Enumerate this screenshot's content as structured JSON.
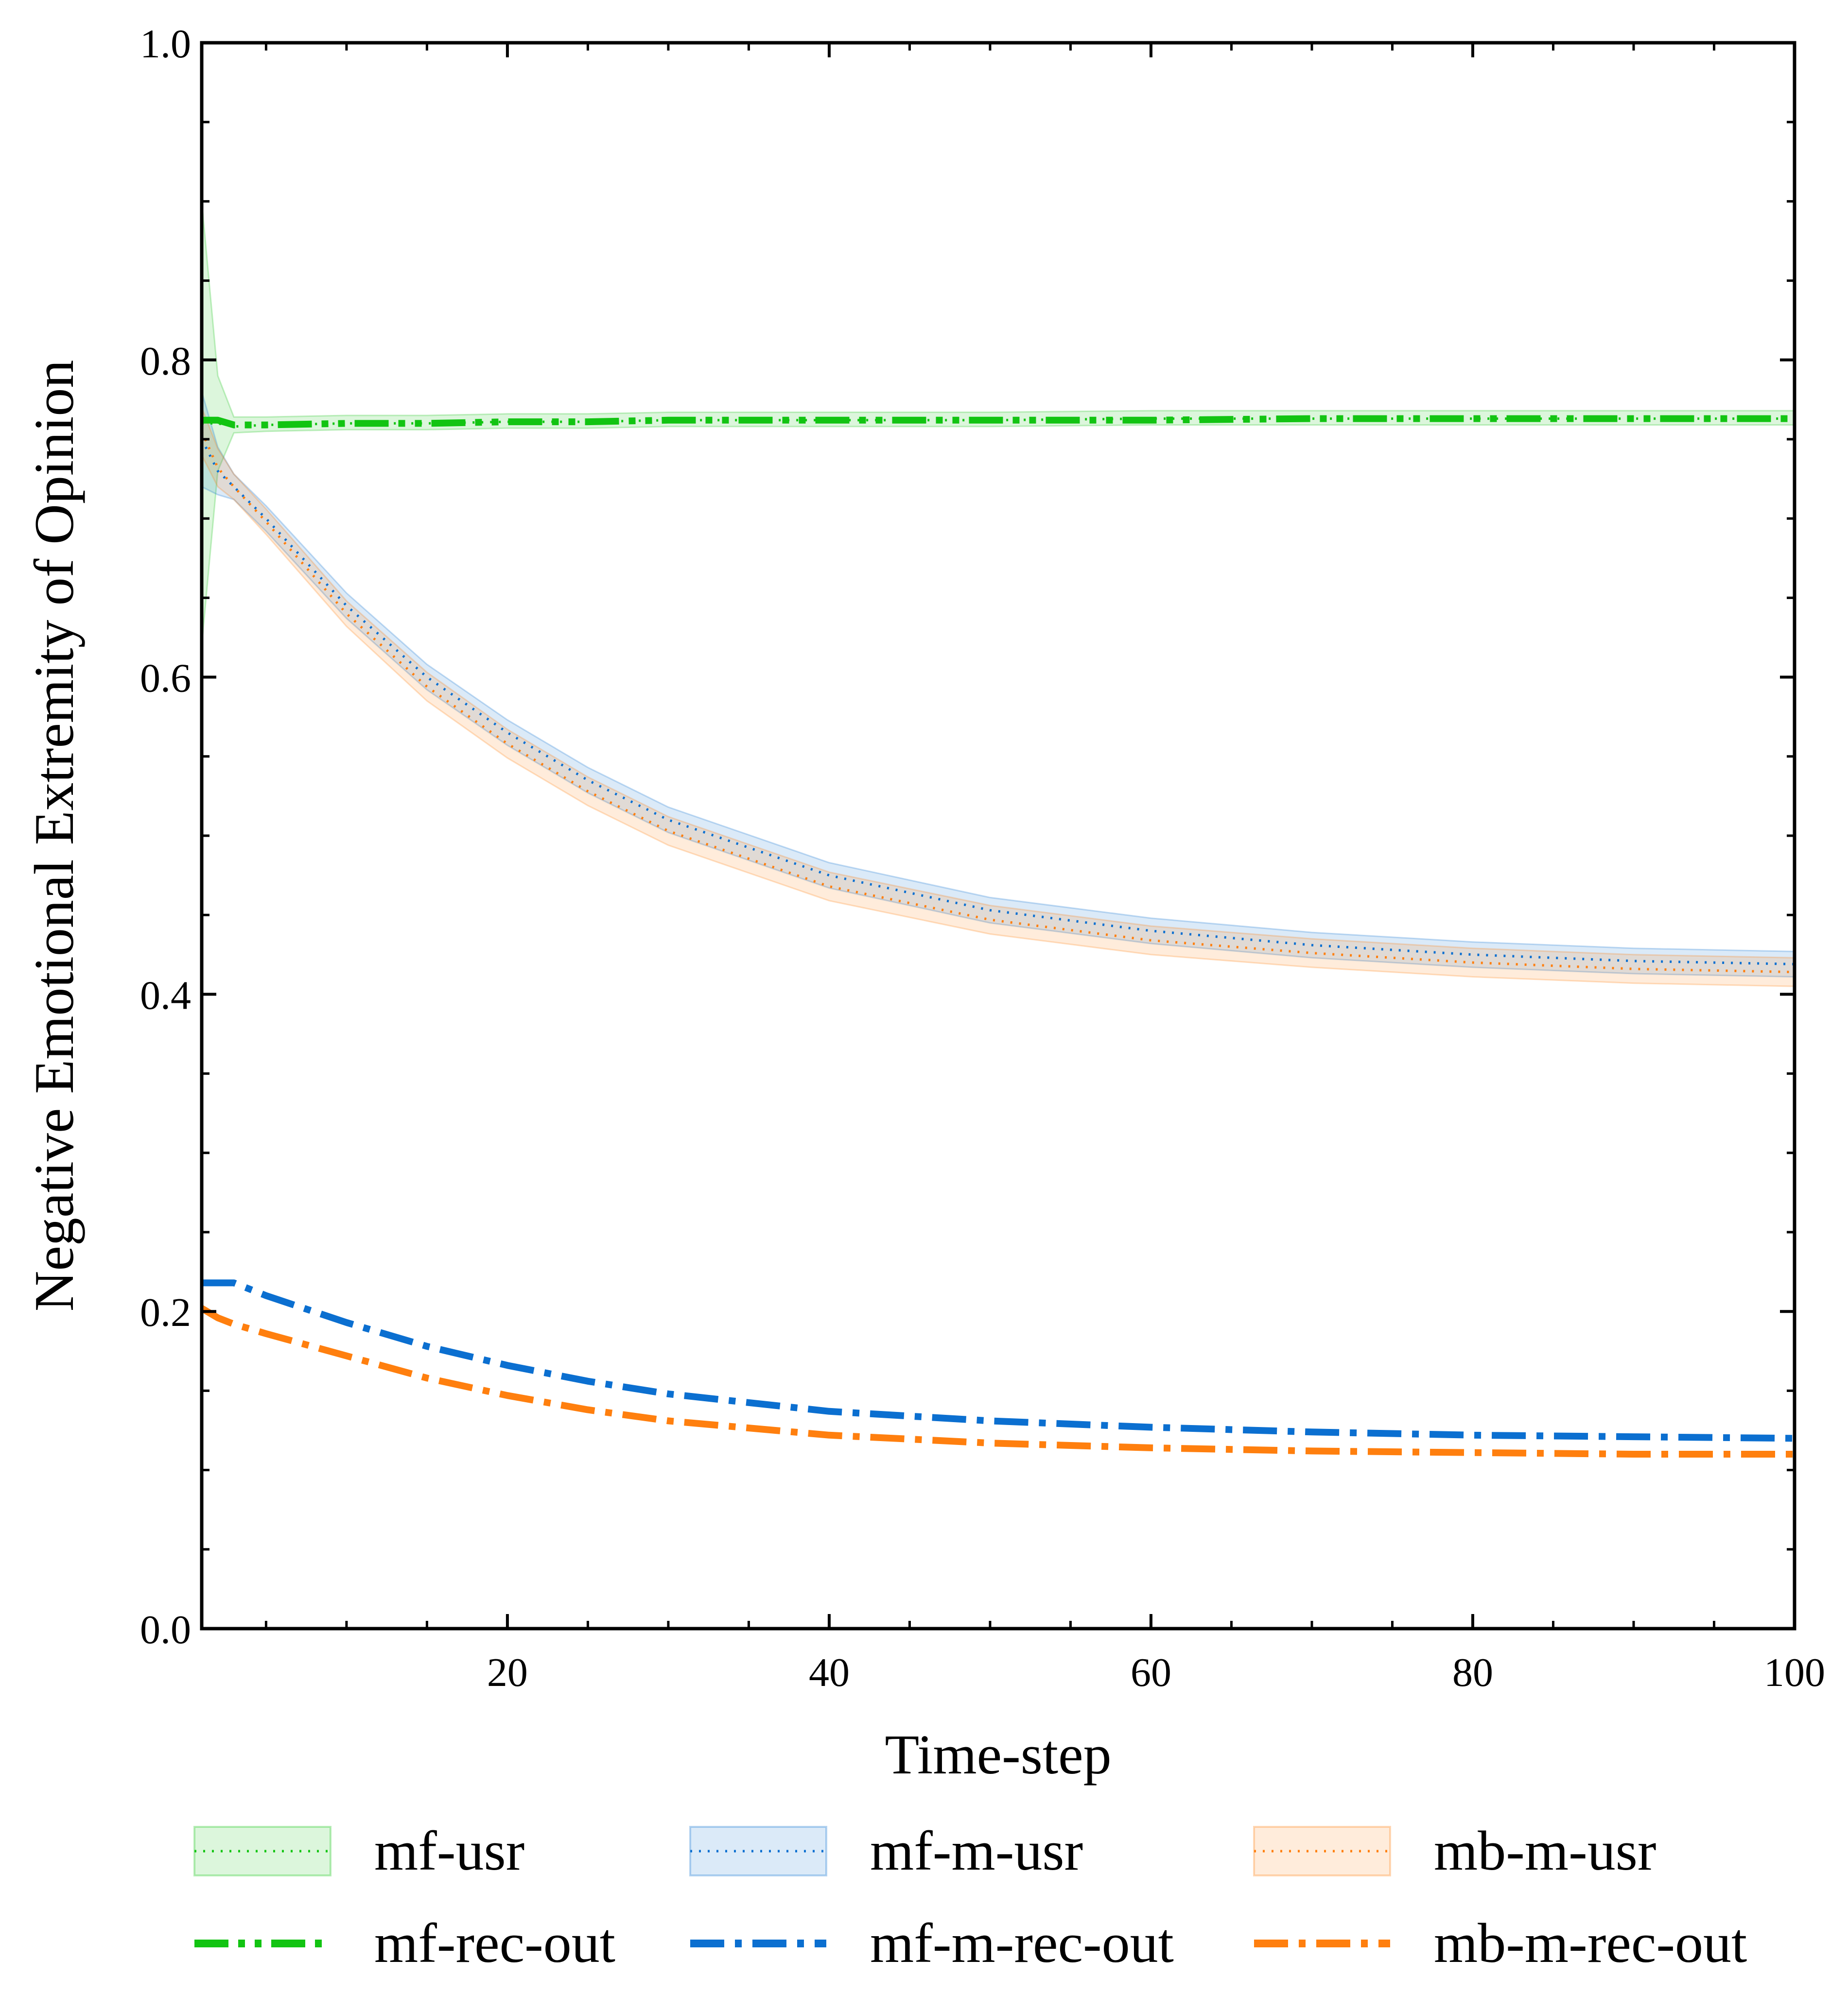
{
  "chart_data": {
    "type": "line",
    "title": "",
    "xlabel": "Time-step",
    "ylabel": "Negative Emotional Extremity of Opinion",
    "xlim": [
      1,
      100
    ],
    "ylim": [
      0.0,
      1.0
    ],
    "x_ticks": [
      20,
      40,
      60,
      80,
      100
    ],
    "x_tick_labels": [
      "20",
      "40",
      "60",
      "80",
      "100"
    ],
    "y_ticks": [
      0.0,
      0.2,
      0.4,
      0.6,
      0.8,
      1.0
    ],
    "y_tick_labels": [
      "0.0",
      "0.2",
      "0.4",
      "0.6",
      "0.8",
      "1.0"
    ],
    "grid": false,
    "legend_position": "bottom-outside, 3 columns",
    "x": [
      1,
      2,
      3,
      5,
      10,
      15,
      20,
      25,
      30,
      40,
      50,
      60,
      70,
      80,
      90,
      100
    ],
    "series": [
      {
        "name": "mf-usr",
        "style": "dotted",
        "color": "#12c412",
        "band": true,
        "values": [
          0.76,
          0.76,
          0.758,
          0.759,
          0.76,
          0.76,
          0.761,
          0.761,
          0.762,
          0.762,
          0.762,
          0.763,
          0.763,
          0.763,
          0.763,
          0.763
        ],
        "band_low": [
          0.62,
          0.73,
          0.754,
          0.755,
          0.756,
          0.756,
          0.757,
          0.757,
          0.758,
          0.758,
          0.758,
          0.759,
          0.759,
          0.759,
          0.759,
          0.759
        ],
        "band_high": [
          0.9,
          0.79,
          0.764,
          0.764,
          0.765,
          0.765,
          0.766,
          0.766,
          0.767,
          0.767,
          0.767,
          0.768,
          0.768,
          0.768,
          0.768,
          0.768
        ]
      },
      {
        "name": "mf-m-usr",
        "style": "dotted",
        "color": "#0b6fd0",
        "band": true,
        "values": [
          0.75,
          0.73,
          0.72,
          0.7,
          0.645,
          0.6,
          0.565,
          0.535,
          0.51,
          0.475,
          0.453,
          0.44,
          0.431,
          0.425,
          0.421,
          0.419
        ],
        "band_low": [
          0.72,
          0.715,
          0.712,
          0.692,
          0.637,
          0.592,
          0.557,
          0.527,
          0.502,
          0.467,
          0.445,
          0.432,
          0.423,
          0.417,
          0.413,
          0.411
        ],
        "band_high": [
          0.78,
          0.745,
          0.728,
          0.708,
          0.653,
          0.608,
          0.573,
          0.543,
          0.518,
          0.483,
          0.461,
          0.448,
          0.439,
          0.433,
          0.429,
          0.427
        ]
      },
      {
        "name": "mb-m-usr",
        "style": "dotted",
        "color": "#ff7f0e",
        "band": true,
        "values": [
          0.755,
          0.732,
          0.72,
          0.698,
          0.64,
          0.594,
          0.558,
          0.528,
          0.503,
          0.468,
          0.447,
          0.434,
          0.426,
          0.42,
          0.416,
          0.414
        ],
        "band_low": [
          0.74,
          0.72,
          0.712,
          0.69,
          0.632,
          0.585,
          0.549,
          0.519,
          0.494,
          0.459,
          0.438,
          0.425,
          0.417,
          0.411,
          0.407,
          0.405
        ],
        "band_high": [
          0.77,
          0.744,
          0.728,
          0.706,
          0.648,
          0.603,
          0.567,
          0.537,
          0.512,
          0.477,
          0.456,
          0.443,
          0.435,
          0.429,
          0.425,
          0.423
        ]
      },
      {
        "name": "mf-rec-out",
        "style": "dashdotdot",
        "color": "#12c412",
        "band": false,
        "values": [
          0.762,
          0.762,
          0.759,
          0.759,
          0.76,
          0.76,
          0.761,
          0.761,
          0.762,
          0.762,
          0.762,
          0.762,
          0.763,
          0.763,
          0.763,
          0.763
        ]
      },
      {
        "name": "mf-m-rec-out",
        "style": "dashdot",
        "color": "#0b6fd0",
        "band": false,
        "values": [
          0.218,
          0.218,
          0.218,
          0.21,
          0.193,
          0.178,
          0.166,
          0.156,
          0.148,
          0.137,
          0.131,
          0.127,
          0.124,
          0.122,
          0.121,
          0.12
        ]
      },
      {
        "name": "mb-m-rec-out",
        "style": "dashdot",
        "color": "#ff7f0e",
        "band": false,
        "values": [
          0.202,
          0.196,
          0.192,
          0.186,
          0.172,
          0.158,
          0.147,
          0.138,
          0.131,
          0.122,
          0.117,
          0.114,
          0.112,
          0.111,
          0.11,
          0.11
        ]
      }
    ]
  },
  "legend": {
    "items": [
      {
        "label": "mf-usr",
        "color": "#12c412",
        "kind": "band-dotted"
      },
      {
        "label": "mf-m-usr",
        "color": "#0b6fd0",
        "kind": "band-dotted"
      },
      {
        "label": "mb-m-usr",
        "color": "#ff7f0e",
        "kind": "band-dotted"
      },
      {
        "label": "mf-rec-out",
        "color": "#12c412",
        "kind": "dashdotdot"
      },
      {
        "label": "mf-m-rec-out",
        "color": "#0b6fd0",
        "kind": "dashdot"
      },
      {
        "label": "mb-m-rec-out",
        "color": "#ff7f0e",
        "kind": "dashdot"
      }
    ]
  }
}
